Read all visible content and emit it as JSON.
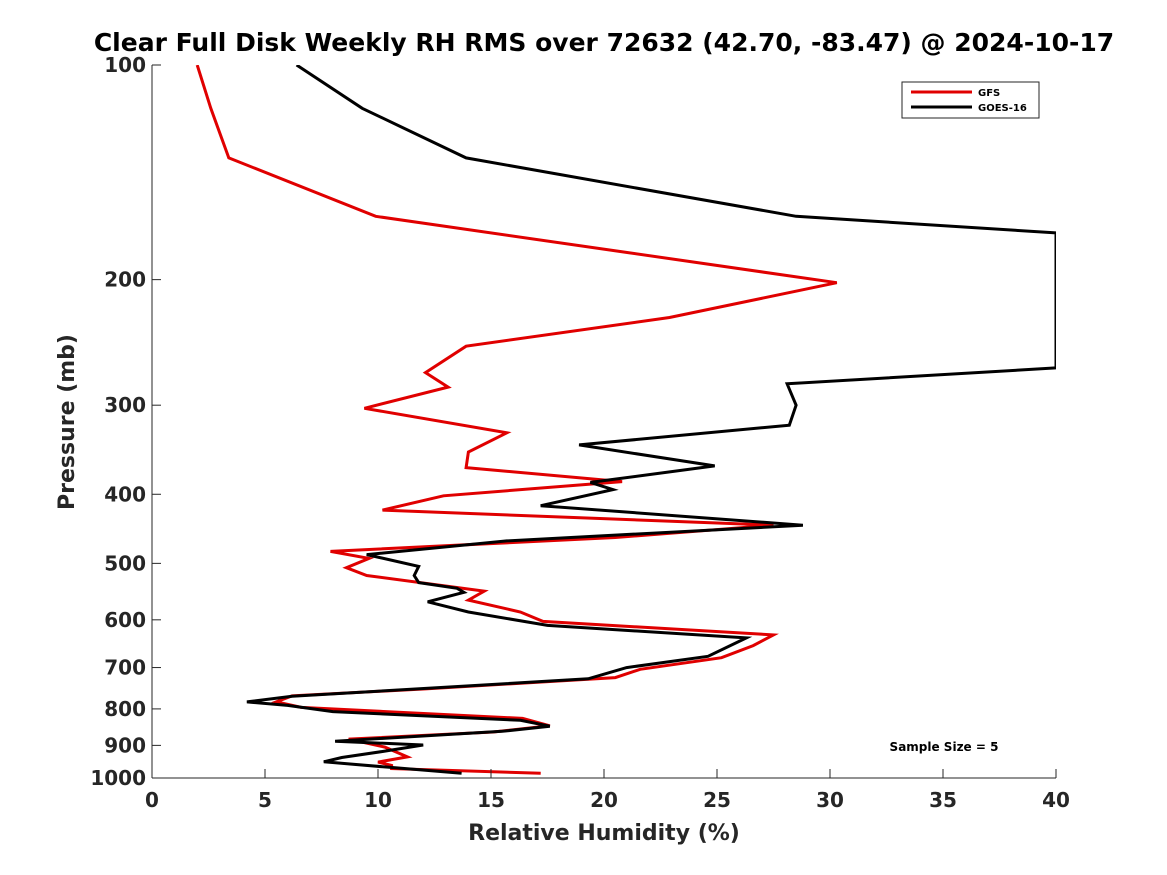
{
  "chart_data": {
    "type": "line",
    "title": "Clear Full Disk Weekly RH RMS over 72632 (42.70, -83.47) @ 2024-10-17",
    "xlabel": "Relative Humidity (%)",
    "ylabel": "Pressure (mb)",
    "xlim": [
      0,
      40
    ],
    "ylim": [
      100,
      1000
    ],
    "yscale": "log",
    "y_reversed": true,
    "xticks": [
      0,
      5,
      10,
      15,
      20,
      25,
      30,
      35,
      40
    ],
    "yticks": [
      100,
      200,
      300,
      400,
      500,
      600,
      700,
      800,
      900,
      1000
    ],
    "legend_position": "top-right",
    "annotation": "Sample Size = 5",
    "series": [
      {
        "name": "GFS",
        "color": "#e00000",
        "points": [
          [
            2.0,
            100
          ],
          [
            2.6,
            115
          ],
          [
            3.4,
            135
          ],
          [
            9.9,
            163
          ],
          [
            30.3,
            202
          ],
          [
            22.9,
            226
          ],
          [
            13.9,
            248
          ],
          [
            12.1,
            270
          ],
          [
            13.1,
            283
          ],
          [
            9.4,
            303
          ],
          [
            15.7,
            328
          ],
          [
            14.0,
            349
          ],
          [
            13.9,
            367
          ],
          [
            20.8,
            384
          ],
          [
            12.9,
            402
          ],
          [
            10.2,
            421
          ],
          [
            27.5,
            442
          ],
          [
            20.5,
            460
          ],
          [
            7.9,
            481
          ],
          [
            9.6,
            492
          ],
          [
            8.6,
            507
          ],
          [
            9.5,
            520
          ],
          [
            14.7,
            547
          ],
          [
            14.0,
            563
          ],
          [
            16.3,
            585
          ],
          [
            17.3,
            603
          ],
          [
            27.5,
            630
          ],
          [
            26.6,
            652
          ],
          [
            25.2,
            678
          ],
          [
            21.6,
            704
          ],
          [
            20.5,
            723
          ],
          [
            12.1,
            750
          ],
          [
            6.2,
            767
          ],
          [
            5.5,
            782
          ],
          [
            6.6,
            796
          ],
          [
            16.4,
            825
          ],
          [
            17.6,
            845
          ],
          [
            15.1,
            862
          ],
          [
            8.7,
            882
          ],
          [
            10.3,
            905
          ],
          [
            11.3,
            934
          ],
          [
            10.0,
            950
          ],
          [
            10.6,
            960
          ],
          [
            10.6,
            970
          ],
          [
            17.2,
            985
          ]
        ]
      },
      {
        "name": "GOES-16",
        "color": "#000000",
        "points": [
          [
            6.4,
            100
          ],
          [
            9.3,
            115
          ],
          [
            13.9,
            135
          ],
          [
            28.5,
            163
          ],
          [
            40.0,
            172
          ],
          [
            40.0,
            266
          ],
          [
            28.1,
            280
          ],
          [
            28.5,
            300
          ],
          [
            28.2,
            320
          ],
          [
            18.9,
            341
          ],
          [
            24.9,
            365
          ],
          [
            19.4,
            385
          ],
          [
            20.4,
            394
          ],
          [
            17.2,
            415
          ],
          [
            28.8,
            442
          ],
          [
            15.7,
            465
          ],
          [
            9.5,
            486
          ],
          [
            11.8,
            505
          ],
          [
            11.6,
            520
          ],
          [
            11.8,
            532
          ],
          [
            13.5,
            542
          ],
          [
            13.8,
            549
          ],
          [
            12.2,
            566
          ],
          [
            14.0,
            585
          ],
          [
            17.5,
            611
          ],
          [
            26.3,
            636
          ],
          [
            24.6,
            675
          ],
          [
            21.0,
            700
          ],
          [
            19.3,
            726
          ],
          [
            6.2,
            768
          ],
          [
            4.2,
            782
          ],
          [
            6.0,
            791
          ],
          [
            8.0,
            807
          ],
          [
            16.3,
            830
          ],
          [
            17.6,
            846
          ],
          [
            15.5,
            860
          ],
          [
            8.1,
            888
          ],
          [
            12.0,
            899
          ],
          [
            10.2,
            918
          ],
          [
            8.4,
            936
          ],
          [
            7.6,
            949
          ],
          [
            10.5,
            966
          ],
          [
            13.7,
            985
          ]
        ]
      }
    ]
  }
}
